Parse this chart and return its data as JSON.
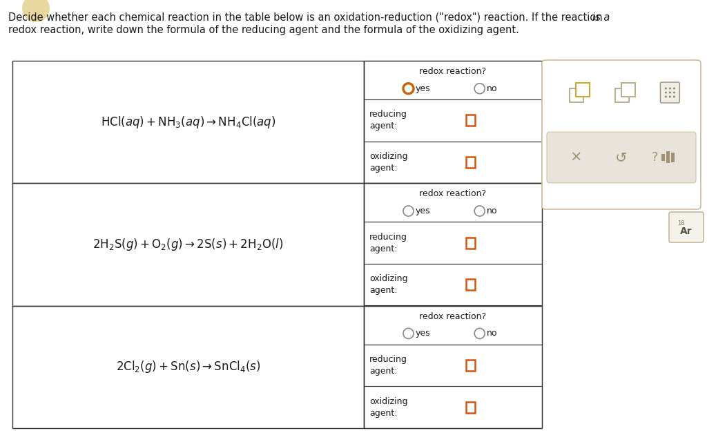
{
  "background_color": "#ffffff",
  "text_color": "#1a1a1a",
  "border_color": "#333333",
  "orange_color": "#c8650a",
  "checkbox_color": "#d4560a",
  "yes_circle_color": "#c8650a",
  "gray_icon_color": "#b0a888",
  "toolbar_bg": "#e8e4dc",
  "toolbar_border": "#ccbc99",
  "panel_border": "#ccbc99",
  "equations": [
    "HCl$(aq)$ + NH$_3$$(aq)$ $\\rightarrow$ NH$_4$Cl$(aq)$",
    "2H$_2$S$(g)$ + O$_2$$(g)$ $\\rightarrow$ 2S$(s)$ + 2H$_2$O$(l)$",
    "2Cl$_2$$(g)$ + Sn$(s)$ $\\rightarrow$ SnCl$_4$$(s)$"
  ],
  "yes_filled": [
    true,
    false,
    false
  ],
  "header_line1": "Decide whether each chemical reaction in the table below is an oxidation-reduction (\"redox\") reaction. If the reaction ",
  "header_italic": "is a",
  "header_line2": "redox reaction, write down the formula of the reducing agent and the formula of the oxidizing agent."
}
